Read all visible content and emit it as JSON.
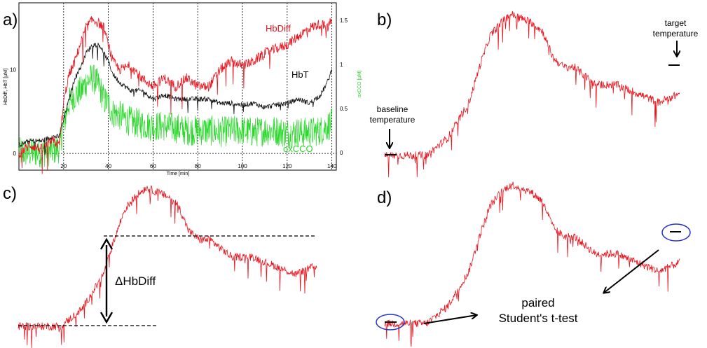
{
  "panels": {
    "a": "a)",
    "b": "b)",
    "c": "c)",
    "d": "d)"
  },
  "colors": {
    "hbdiff": "#e8141e",
    "hbt": "#111111",
    "oxcco": "#2ad82a",
    "circle": "#2233cc"
  },
  "annotations": {
    "baseline_line1": "baseline",
    "baseline_line2": "temperature",
    "target_line1": "target",
    "target_line2": "temperature",
    "delta": "ΔHbDiff",
    "ttest_line1": "paired",
    "ttest_line2": "Student's t-test"
  },
  "chart_data": [
    {
      "panel": "a)",
      "type": "line",
      "xlabel": "Time [min]",
      "ylabel_left": "HbDiff, HbT [μM]",
      "ylabel_right": "oxCCO [μM]",
      "xlim": [
        0,
        142
      ],
      "ylim_left": [
        -2,
        18
      ],
      "ylim_right": [
        -0.2,
        1.7
      ],
      "x_ticks": [
        20,
        40,
        60,
        80,
        100,
        120,
        140
      ],
      "y_ticks_left": [
        0,
        10
      ],
      "y_ticks_right": [
        0,
        0.5,
        1,
        1.5
      ],
      "grid": "dotted vertical lines at x ticks, dotted horizontal line at 0",
      "x": [
        0,
        5,
        10,
        15,
        18,
        20,
        22,
        25,
        28,
        30,
        33,
        36,
        38,
        40,
        42,
        45,
        50,
        55,
        60,
        65,
        70,
        75,
        80,
        85,
        90,
        95,
        100,
        105,
        110,
        115,
        120,
        125,
        130,
        135,
        138,
        140
      ],
      "series": [
        {
          "name": "HbDiff",
          "axis": "left",
          "color": "#e8141e",
          "values": [
            0,
            1,
            0.5,
            1.5,
            1,
            6,
            9,
            11,
            13.5,
            15,
            16,
            15.5,
            15,
            13,
            11,
            10,
            10.5,
            9,
            8,
            9,
            8,
            9,
            8,
            8,
            10,
            11,
            10.5,
            11,
            12,
            12.5,
            13,
            14,
            15,
            15.5,
            15,
            16
          ]
        },
        {
          "name": "HbT",
          "axis": "left",
          "color": "#111111",
          "values": [
            1,
            1.5,
            1.5,
            2,
            2,
            4,
            6,
            9,
            10.5,
            12,
            13,
            13,
            12,
            11,
            9.5,
            8.5,
            7.5,
            7.5,
            6.5,
            7,
            6.5,
            6.5,
            6.5,
            6.5,
            6,
            6,
            5.8,
            6,
            5.5,
            5.8,
            6,
            6.5,
            6,
            7,
            8.5,
            10
          ]
        },
        {
          "name": "oxCCO",
          "axis": "right",
          "color": "#2ad82a",
          "values": [
            0,
            0,
            0,
            0.02,
            0.05,
            0.3,
            0.55,
            0.65,
            0.7,
            0.8,
            0.85,
            0.75,
            0.6,
            0.55,
            0.45,
            0.42,
            0.35,
            0.32,
            0.3,
            0.3,
            0.28,
            0.25,
            0.25,
            0.25,
            0.23,
            0.25,
            0.25,
            0.23,
            0.25,
            0.25,
            0.22,
            0.23,
            0.23,
            0.25,
            0.3,
            0.33
          ]
        }
      ]
    },
    {
      "panel": "b)",
      "type": "line",
      "series_name": "HbDiff",
      "color": "#e8141e",
      "x": [
        0,
        10,
        20,
        30,
        40,
        45,
        50,
        55,
        60,
        65,
        70,
        75,
        80,
        85,
        90,
        95,
        100,
        105,
        110,
        115,
        120,
        125,
        130,
        135,
        140
      ],
      "values": [
        0,
        0,
        0,
        2,
        6,
        10,
        13.5,
        15,
        16,
        15.5,
        15,
        14,
        11,
        10,
        10,
        9,
        8,
        8,
        8,
        7.5,
        7,
        6.5,
        6,
        6.5,
        7
      ],
      "marks": [
        "baseline",
        "target"
      ]
    },
    {
      "panel": "c)",
      "type": "line",
      "series_name": "HbDiff",
      "color": "#e8141e",
      "x": [
        0,
        10,
        20,
        30,
        40,
        45,
        50,
        55,
        60,
        65,
        70,
        75,
        80,
        85,
        90,
        95,
        100,
        105,
        110,
        115,
        120,
        125,
        130,
        135,
        140
      ],
      "values": [
        0,
        0,
        0,
        2,
        6,
        10,
        13.5,
        15,
        16,
        15.5,
        15,
        14,
        11,
        10,
        10,
        9,
        8,
        8,
        8,
        7.5,
        7,
        6.5,
        6,
        6.5,
        7
      ],
      "reference_lines": [
        "baseline level",
        "target level"
      ]
    },
    {
      "panel": "d)",
      "type": "line",
      "series_name": "HbDiff",
      "color": "#e8141e",
      "x": [
        0,
        10,
        20,
        30,
        40,
        45,
        50,
        55,
        60,
        65,
        70,
        75,
        80,
        85,
        90,
        95,
        100,
        105,
        110,
        115,
        120,
        125,
        130,
        135,
        140
      ],
      "values": [
        0,
        0,
        0,
        2,
        6,
        10,
        13.5,
        15,
        16,
        15.5,
        15,
        14,
        11,
        10,
        10,
        9,
        8,
        8,
        8,
        7.5,
        7,
        6.5,
        6,
        6.5,
        7
      ],
      "circled": [
        "baseline",
        "target"
      ]
    }
  ]
}
